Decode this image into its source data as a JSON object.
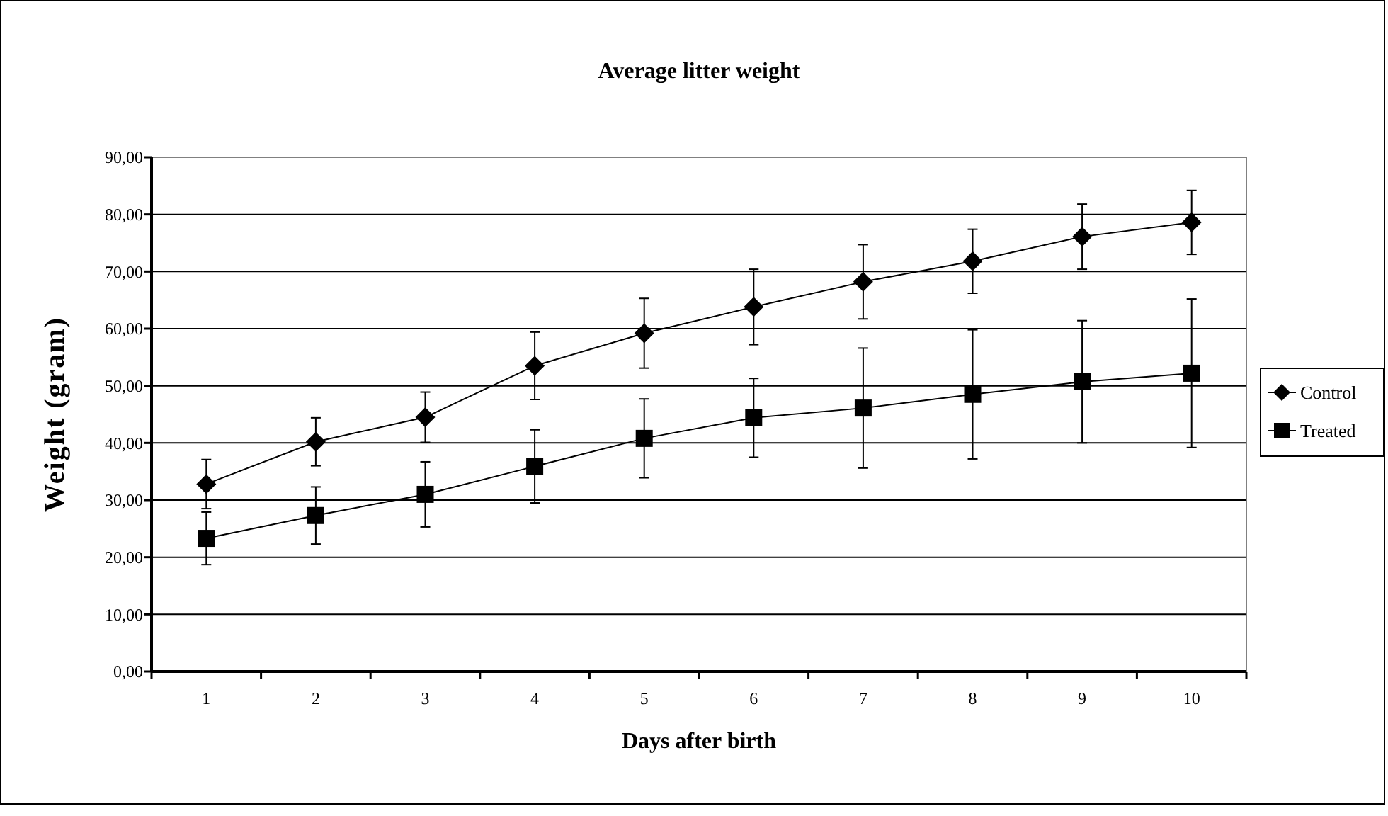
{
  "chart_data": {
    "type": "line",
    "title": "Average litter weight",
    "xlabel": "Days after birth",
    "ylabel": "Weight (gram)",
    "categories": [
      "1",
      "2",
      "3",
      "4",
      "5",
      "6",
      "7",
      "8",
      "9",
      "10"
    ],
    "series": [
      {
        "name": "Control",
        "color": "#000000",
        "marker": "diamond",
        "values": [
          32.8,
          40.2,
          44.5,
          53.5,
          59.2,
          63.8,
          68.2,
          71.8,
          76.1,
          78.6
        ],
        "errors": [
          4.3,
          4.2,
          4.4,
          5.9,
          6.1,
          6.6,
          6.5,
          5.6,
          5.7,
          5.6
        ]
      },
      {
        "name": "Treated",
        "color": "#000000",
        "marker": "square",
        "values": [
          23.3,
          27.3,
          31.0,
          35.9,
          40.8,
          44.4,
          46.1,
          48.5,
          50.7,
          52.2
        ],
        "errors": [
          4.6,
          5.0,
          5.7,
          6.4,
          6.9,
          6.9,
          10.5,
          11.3,
          10.7,
          13.0
        ]
      }
    ],
    "ylim": [
      0,
      90
    ],
    "yticks": [
      {
        "value": 0,
        "label": "0,00"
      },
      {
        "value": 10,
        "label": "10,00"
      },
      {
        "value": 20,
        "label": "20,00"
      },
      {
        "value": 30,
        "label": "30,00"
      },
      {
        "value": 40,
        "label": "40,00"
      },
      {
        "value": 50,
        "label": "50,00"
      },
      {
        "value": 60,
        "label": "60,00"
      },
      {
        "value": 70,
        "label": "70,00"
      },
      {
        "value": 80,
        "label": "80,00"
      },
      {
        "value": 90,
        "label": "90,00"
      }
    ],
    "grid": "y",
    "legend": "right",
    "line_style": "solid"
  }
}
